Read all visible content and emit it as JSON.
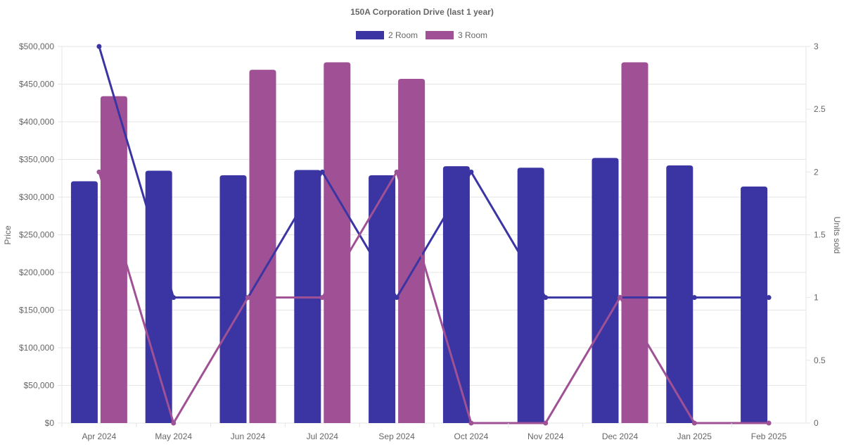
{
  "chart_data": {
    "type": "bar",
    "title": "150A Corporation Drive (last 1 year)",
    "ylabel": "Price",
    "y2label": "Units sold",
    "ylim": [
      0,
      500000
    ],
    "y2lim": [
      0,
      3
    ],
    "yticks": [
      "$0",
      "$50,000",
      "$100,000",
      "$150,000",
      "$200,000",
      "$250,000",
      "$300,000",
      "$350,000",
      "$400,000",
      "$450,000",
      "$500,000"
    ],
    "y2ticks": [
      "0",
      "0.5",
      "1",
      "1.5",
      "2",
      "2.5",
      "3"
    ],
    "legend_position": "top",
    "grid": true,
    "categories": [
      "Apr 2024",
      "May 2024",
      "Jun 2024",
      "Jul 2024",
      "Sep 2024",
      "Oct 2024",
      "Nov 2024",
      "Dec 2024",
      "Jan 2025",
      "Feb 2025"
    ],
    "series": [
      {
        "name": "2 Room",
        "color": "#3a35a2",
        "price": [
          321000,
          335000,
          329000,
          336000,
          329000,
          341000,
          339000,
          352000,
          342000,
          314000
        ],
        "units_sold": [
          3,
          1,
          1,
          2,
          1,
          2,
          1,
          1,
          1,
          1
        ]
      },
      {
        "name": "3 Room",
        "color": "#a05195",
        "price": [
          434000,
          null,
          469000,
          479000,
          457000,
          null,
          null,
          479000,
          null,
          null
        ],
        "units_sold": [
          2,
          0,
          1,
          1,
          2,
          0,
          0,
          1,
          0,
          0
        ]
      }
    ]
  }
}
